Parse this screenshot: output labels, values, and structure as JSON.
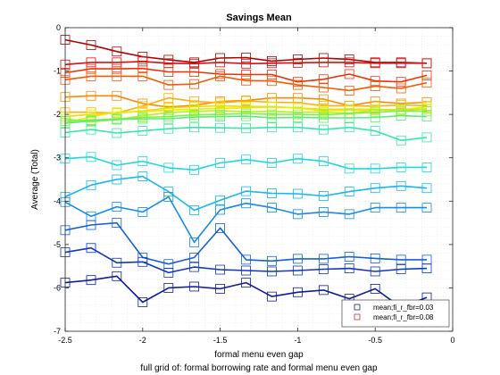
{
  "chart_data": {
    "type": "line",
    "title": "Savings Mean",
    "xlabel": "formal menu even gap",
    "ylabel": "Average (Total)",
    "caption": "full grid of: formal borrowing rate and formal menu even gap",
    "xlim": [
      -2.5,
      0
    ],
    "ylim": [
      -7,
      0
    ],
    "xticks": [
      -2.5,
      -2,
      -1.5,
      -1,
      -0.5,
      0
    ],
    "xtick_labels": [
      "-2.5",
      "-2",
      "-1.5",
      "-1",
      "-0.5",
      "0"
    ],
    "yticks": [
      -7,
      -6,
      -5,
      -4,
      -3,
      -2,
      -1,
      0
    ],
    "ytick_labels": [
      "-7",
      "-6",
      "-5",
      "-4",
      "-3",
      "-2",
      "-1",
      "0"
    ],
    "grid": "minor-dotted",
    "legend_position": "bottom-right",
    "legend": [
      {
        "label": "mean;fi_r_fbr=0.03",
        "color": "#1a237e"
      },
      {
        "label": "mean;fi_r_fbr=0.08",
        "color": "#c0392b"
      }
    ],
    "x": [
      -2.5,
      -2.333,
      -2.167,
      -2.0,
      -1.833,
      -1.667,
      -1.5,
      -1.333,
      -1.167,
      -1.0,
      -0.833,
      -0.667,
      -0.5,
      -0.333,
      -0.167
    ],
    "series": [
      {
        "color": "#b00000",
        "values": [
          -0.28,
          -0.4,
          -0.55,
          -0.67,
          -0.74,
          -0.8,
          -0.7,
          -0.69,
          -0.77,
          -0.73,
          -0.7,
          -0.73,
          -0.8,
          -0.8,
          -0.82
        ]
      },
      {
        "color": "#d8100d",
        "values": [
          -0.85,
          -0.8,
          -0.8,
          -0.78,
          -0.82,
          -0.83,
          -0.8,
          -0.83,
          -0.82,
          -0.81,
          -0.8,
          -0.8,
          -0.82,
          -0.82,
          -0.82
        ]
      },
      {
        "color": "#ee3308",
        "values": [
          -1.04,
          -0.95,
          -0.95,
          -0.94,
          -1.02,
          -1.02,
          -1.07,
          -1.08,
          -1.08,
          -1.25,
          -1.19,
          -1.07,
          -1.23,
          -1.25,
          -1.1
        ]
      },
      {
        "color": "#f55a05",
        "values": [
          -1.2,
          -1.12,
          -1.12,
          -1.12,
          -1.32,
          -1.3,
          -1.12,
          -1.22,
          -1.23,
          -1.32,
          -1.38,
          -1.45,
          -1.35,
          -1.4,
          -1.27
        ]
      },
      {
        "color": "#fa8a04",
        "values": [
          -1.6,
          -1.57,
          -1.57,
          -1.75,
          -1.83,
          -1.79,
          -1.7,
          -1.68,
          -1.62,
          -1.62,
          -1.65,
          -1.8,
          -1.7,
          -1.75,
          -1.72
        ]
      },
      {
        "color": "#fbb203",
        "values": [
          -1.95,
          -1.95,
          -1.97,
          -1.81,
          -1.62,
          -1.7,
          -1.73,
          -1.69,
          -1.72,
          -1.73,
          -1.8,
          -1.8,
          -1.81,
          -1.78,
          -1.8
        ]
      },
      {
        "color": "#f7d800",
        "values": [
          -2.05,
          -2.0,
          -1.97,
          -1.92,
          -1.85,
          -1.82,
          -1.8,
          -1.82,
          -1.82,
          -1.85,
          -1.88,
          -1.88,
          -1.88,
          -1.92,
          -1.87
        ]
      },
      {
        "color": "#e5f000",
        "values": [
          -2.2,
          -2.05,
          -1.95,
          -1.94,
          -1.9,
          -1.88,
          -1.86,
          -1.85,
          -1.83,
          -1.85,
          -1.92,
          -1.9,
          -1.9,
          -1.9,
          -1.82
        ]
      },
      {
        "color": "#b8f020",
        "values": [
          -2.1,
          -2.17,
          -2.12,
          -2.03,
          -1.96,
          -1.93,
          -1.91,
          -1.94,
          -1.93,
          -1.95,
          -1.95,
          -1.97,
          -1.9,
          -1.88,
          -1.88
        ]
      },
      {
        "color": "#86f040",
        "values": [
          -2.15,
          -2.13,
          -2.1,
          -2.07,
          -2.05,
          -2.01,
          -2.0,
          -1.98,
          -2.0,
          -2.0,
          -2.01,
          -1.98,
          -1.95,
          -1.92,
          -1.93
        ]
      },
      {
        "color": "#55ee77",
        "values": [
          -2.2,
          -2.15,
          -2.12,
          -2.1,
          -2.1,
          -2.06,
          -2.05,
          -2.04,
          -2.08,
          -2.07,
          -2.08,
          -2.08,
          -2.07,
          -2.03,
          -2.05
        ]
      },
      {
        "color": "#33e8a8",
        "values": [
          -2.42,
          -2.35,
          -2.43,
          -2.38,
          -2.33,
          -2.3,
          -2.31,
          -2.32,
          -2.3,
          -2.3,
          -2.35,
          -2.3,
          -2.38,
          -2.6,
          -2.53
        ]
      },
      {
        "color": "#1fd8de",
        "values": [
          -3.02,
          -2.98,
          -3.17,
          -3.08,
          -3.23,
          -3.28,
          -3.12,
          -3.04,
          -3.12,
          -3.02,
          -3.08,
          -3.25,
          -3.25,
          -3.22,
          -3.22
        ]
      },
      {
        "color": "#16b6ee",
        "values": [
          -3.9,
          -3.63,
          -3.5,
          -3.43,
          -3.78,
          -4.21,
          -3.98,
          -3.77,
          -3.82,
          -3.83,
          -3.88,
          -3.78,
          -3.7,
          -3.65,
          -3.7
        ]
      },
      {
        "color": "#168be8",
        "values": [
          -4.02,
          -4.35,
          -4.13,
          -4.25,
          -3.9,
          -4.95,
          -4.2,
          -4.05,
          -4.15,
          -4.3,
          -4.25,
          -4.3,
          -4.15,
          -4.15,
          -4.15
        ]
      },
      {
        "color": "#1461d6",
        "values": [
          -4.67,
          -4.55,
          -4.5,
          -5.3,
          -5.45,
          -5.3,
          -4.62,
          -5.35,
          -5.38,
          -5.33,
          -5.33,
          -5.28,
          -5.32,
          -5.35,
          -5.35
        ]
      },
      {
        "color": "#1038bf",
        "values": [
          -5.18,
          -5.08,
          -5.42,
          -5.4,
          -5.65,
          -5.52,
          -5.58,
          -5.6,
          -5.62,
          -5.6,
          -5.57,
          -5.55,
          -5.62,
          -5.57,
          -5.55
        ]
      },
      {
        "color": "#101d9a",
        "values": [
          -5.88,
          -5.82,
          -5.73,
          -6.33,
          -6.0,
          -5.97,
          -6.02,
          -5.88,
          -6.2,
          -6.1,
          -6.05,
          -6.25,
          -6.02,
          -6.45,
          -6.22
        ]
      }
    ]
  }
}
